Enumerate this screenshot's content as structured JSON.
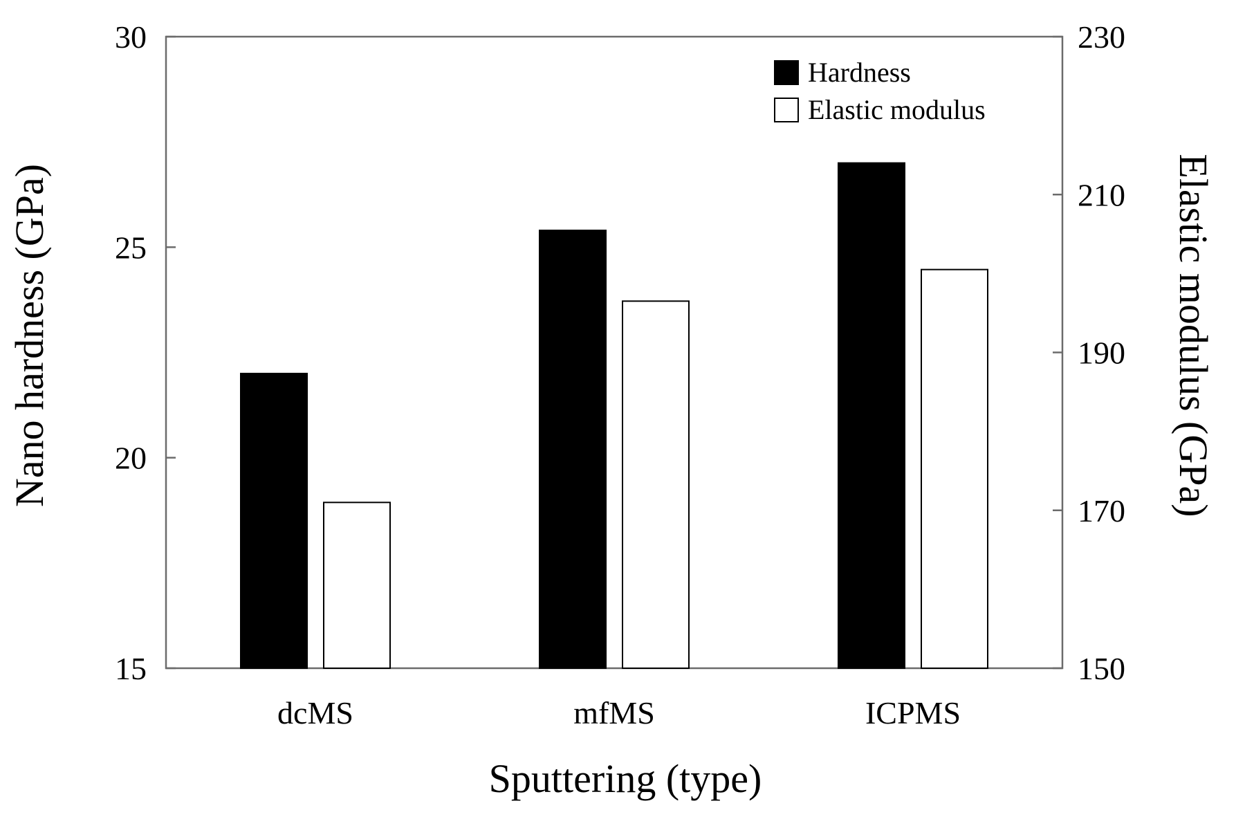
{
  "chart_data": {
    "type": "bar",
    "title": "",
    "xlabel": "Sputtering (type)",
    "ylabel": "Nano hardness (GPa)",
    "ylabel_right": "Elastic modulus (GPa)",
    "categories": [
      "dcMS",
      "mfMS",
      "ICPMS"
    ],
    "ylim": [
      15,
      30
    ],
    "yticks": [
      "15",
      "20",
      "25",
      "30"
    ],
    "ylim_right": [
      150,
      230
    ],
    "yticks_right": [
      "150",
      "170",
      "190",
      "210",
      "230"
    ],
    "legend_position": "top-right",
    "grid": false,
    "series": [
      {
        "name": "Hardness",
        "axis": "left",
        "color": "#000000",
        "values": [
          22.0,
          25.4,
          27.0
        ]
      },
      {
        "name": "Elastic modulus",
        "axis": "right",
        "color": "#ffffff",
        "values": [
          171.0,
          196.5,
          200.5
        ]
      }
    ]
  }
}
